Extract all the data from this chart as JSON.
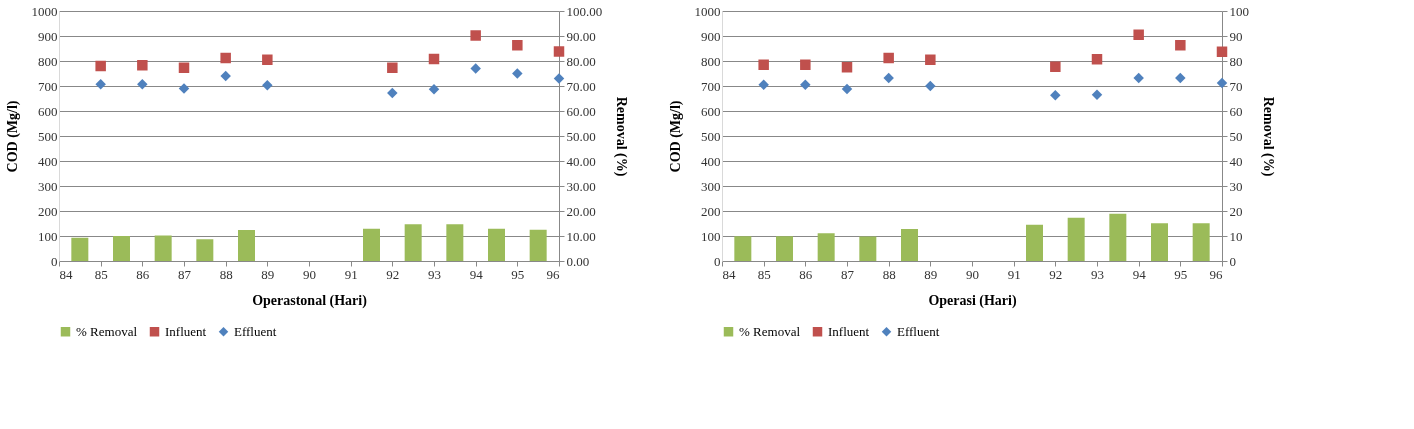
{
  "chart_data": [
    {
      "type": "scatter",
      "xlabel": "Operastonal (Hari)",
      "ylabel": "COD (Mg/l)",
      "y2label": "Removal (%)",
      "xlim": [
        84,
        96
      ],
      "xticks": [
        84,
        85,
        86,
        87,
        88,
        89,
        90,
        91,
        92,
        93,
        94,
        95,
        96
      ],
      "ylim": [
        0,
        1000
      ],
      "yticks": [
        0,
        100,
        200,
        300,
        400,
        500,
        600,
        700,
        800,
        900,
        1000
      ],
      "y2lim": [
        0,
        100
      ],
      "y2ticks": [
        {
          "value": 0,
          "label": "0.00"
        },
        {
          "value": 10,
          "label": "10.00"
        },
        {
          "value": 20,
          "label": "20.00"
        },
        {
          "value": 30,
          "label": "30.00"
        },
        {
          "value": 40,
          "label": "40.00"
        },
        {
          "value": 50,
          "label": "50.00"
        },
        {
          "value": 60,
          "label": "60.00"
        },
        {
          "value": 70,
          "label": "70.00"
        },
        {
          "value": 80,
          "label": "80.00"
        },
        {
          "value": 90,
          "label": "90.00"
        },
        {
          "value": 100,
          "label": "100.00"
        }
      ],
      "grid": "y",
      "legend": "bottom",
      "series": [
        {
          "name": "% Removal",
          "type": "bar",
          "axis": "y2",
          "color": "#9bbb59",
          "x": [
            84.5,
            85.5,
            86.5,
            87.5,
            88.5,
            91.5,
            92.5,
            93.5,
            94.5,
            95.5
          ],
          "values": [
            9.3,
            10.0,
            10.2,
            8.7,
            12.4,
            12.9,
            14.7,
            14.7,
            12.9,
            12.5
          ]
        },
        {
          "name": "Influent",
          "type": "scatter",
          "marker": "square",
          "color": "#c0504d",
          "x": [
            85,
            86,
            87,
            88,
            89,
            92,
            93,
            94,
            95,
            96
          ],
          "values": [
            780,
            783,
            773,
            812,
            805,
            773,
            808,
            902,
            863,
            838
          ]
        },
        {
          "name": "Effluent",
          "type": "scatter",
          "marker": "diamond",
          "color": "#4f81bd",
          "x": [
            85,
            86,
            87,
            88,
            89,
            92,
            93,
            94,
            95,
            96
          ],
          "values": [
            707,
            707,
            690,
            740,
            703,
            672,
            687,
            770,
            750,
            730
          ]
        }
      ]
    },
    {
      "type": "scatter",
      "xlabel": "Operasi (Hari)",
      "ylabel": "COD (Mg/l)",
      "y2label": "Removal (%)",
      "xlim": [
        84,
        96
      ],
      "xticks": [
        84,
        85,
        86,
        87,
        88,
        89,
        90,
        91,
        92,
        93,
        94,
        95,
        96
      ],
      "ylim": [
        0,
        1000
      ],
      "yticks": [
        0,
        100,
        200,
        300,
        400,
        500,
        600,
        700,
        800,
        900,
        1000
      ],
      "y2lim": [
        0,
        100
      ],
      "y2ticks": [
        0,
        10,
        20,
        30,
        40,
        50,
        60,
        70,
        80,
        90,
        100
      ],
      "grid": "y",
      "legend": "bottom",
      "series": [
        {
          "name": "% Removal",
          "type": "bar",
          "axis": "y2",
          "color": "#9bbb59",
          "x": [
            84.5,
            85.5,
            86.5,
            87.5,
            88.5,
            91.5,
            92.5,
            93.5,
            94.5,
            95.5
          ],
          "values": [
            9.9,
            9.9,
            11.1,
            9.8,
            12.8,
            14.5,
            17.3,
            18.9,
            15.1,
            15.1
          ]
        },
        {
          "name": "Influent",
          "type": "scatter",
          "marker": "square",
          "color": "#c0504d",
          "x": [
            85,
            86,
            87,
            88,
            89,
            92,
            93,
            94,
            95,
            96
          ],
          "values": [
            785,
            785,
            775,
            812,
            805,
            777,
            807,
            905,
            863,
            837
          ]
        },
        {
          "name": "Effluent",
          "type": "scatter",
          "marker": "diamond",
          "color": "#4f81bd",
          "x": [
            85,
            86,
            87,
            88,
            89,
            92,
            93,
            94,
            95,
            96
          ],
          "values": [
            705,
            705,
            688,
            732,
            700,
            663,
            665,
            732,
            732,
            712
          ]
        }
      ]
    }
  ]
}
